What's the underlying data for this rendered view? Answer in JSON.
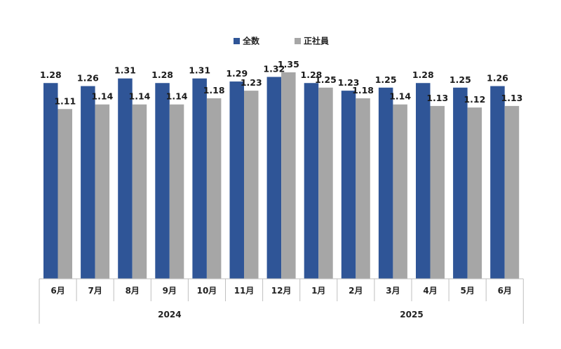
{
  "chart_data": {
    "type": "bar",
    "categories": [
      "6月",
      "7月",
      "8月",
      "9月",
      "10月",
      "11月",
      "12月",
      "1月",
      "2月",
      "3月",
      "4月",
      "5月",
      "6月"
    ],
    "groups": [
      {
        "label": "2024",
        "count": 7
      },
      {
        "label": "2025",
        "count": 6
      }
    ],
    "series": [
      {
        "name": "全数",
        "color": "#2F5597",
        "values": [
          1.28,
          1.26,
          1.31,
          1.28,
          1.31,
          1.29,
          1.32,
          1.28,
          1.23,
          1.25,
          1.28,
          1.25,
          1.26
        ]
      },
      {
        "name": "正社員",
        "color": "#A6A6A6",
        "values": [
          1.11,
          1.14,
          1.14,
          1.14,
          1.18,
          1.23,
          1.35,
          1.25,
          1.18,
          1.14,
          1.13,
          1.12,
          1.13
        ]
      }
    ],
    "value_labels": {
      "全数": [
        "1.28",
        "1.26",
        "1.31",
        "1.28",
        "1.31",
        "1.29",
        "1.32",
        "1.28",
        "1.23",
        "1.25",
        "1.28",
        "1.25",
        "1.26"
      ],
      "正社員": [
        "1.11",
        "1.14",
        "1.14",
        "1.14",
        "1.18",
        "1.23",
        "1.35",
        "1.25",
        "1.18",
        "1.14",
        "1.13",
        "1.12",
        "1.13"
      ]
    },
    "ylim": [
      0,
      1.35
    ],
    "grid": false,
    "legend_position": "top"
  }
}
